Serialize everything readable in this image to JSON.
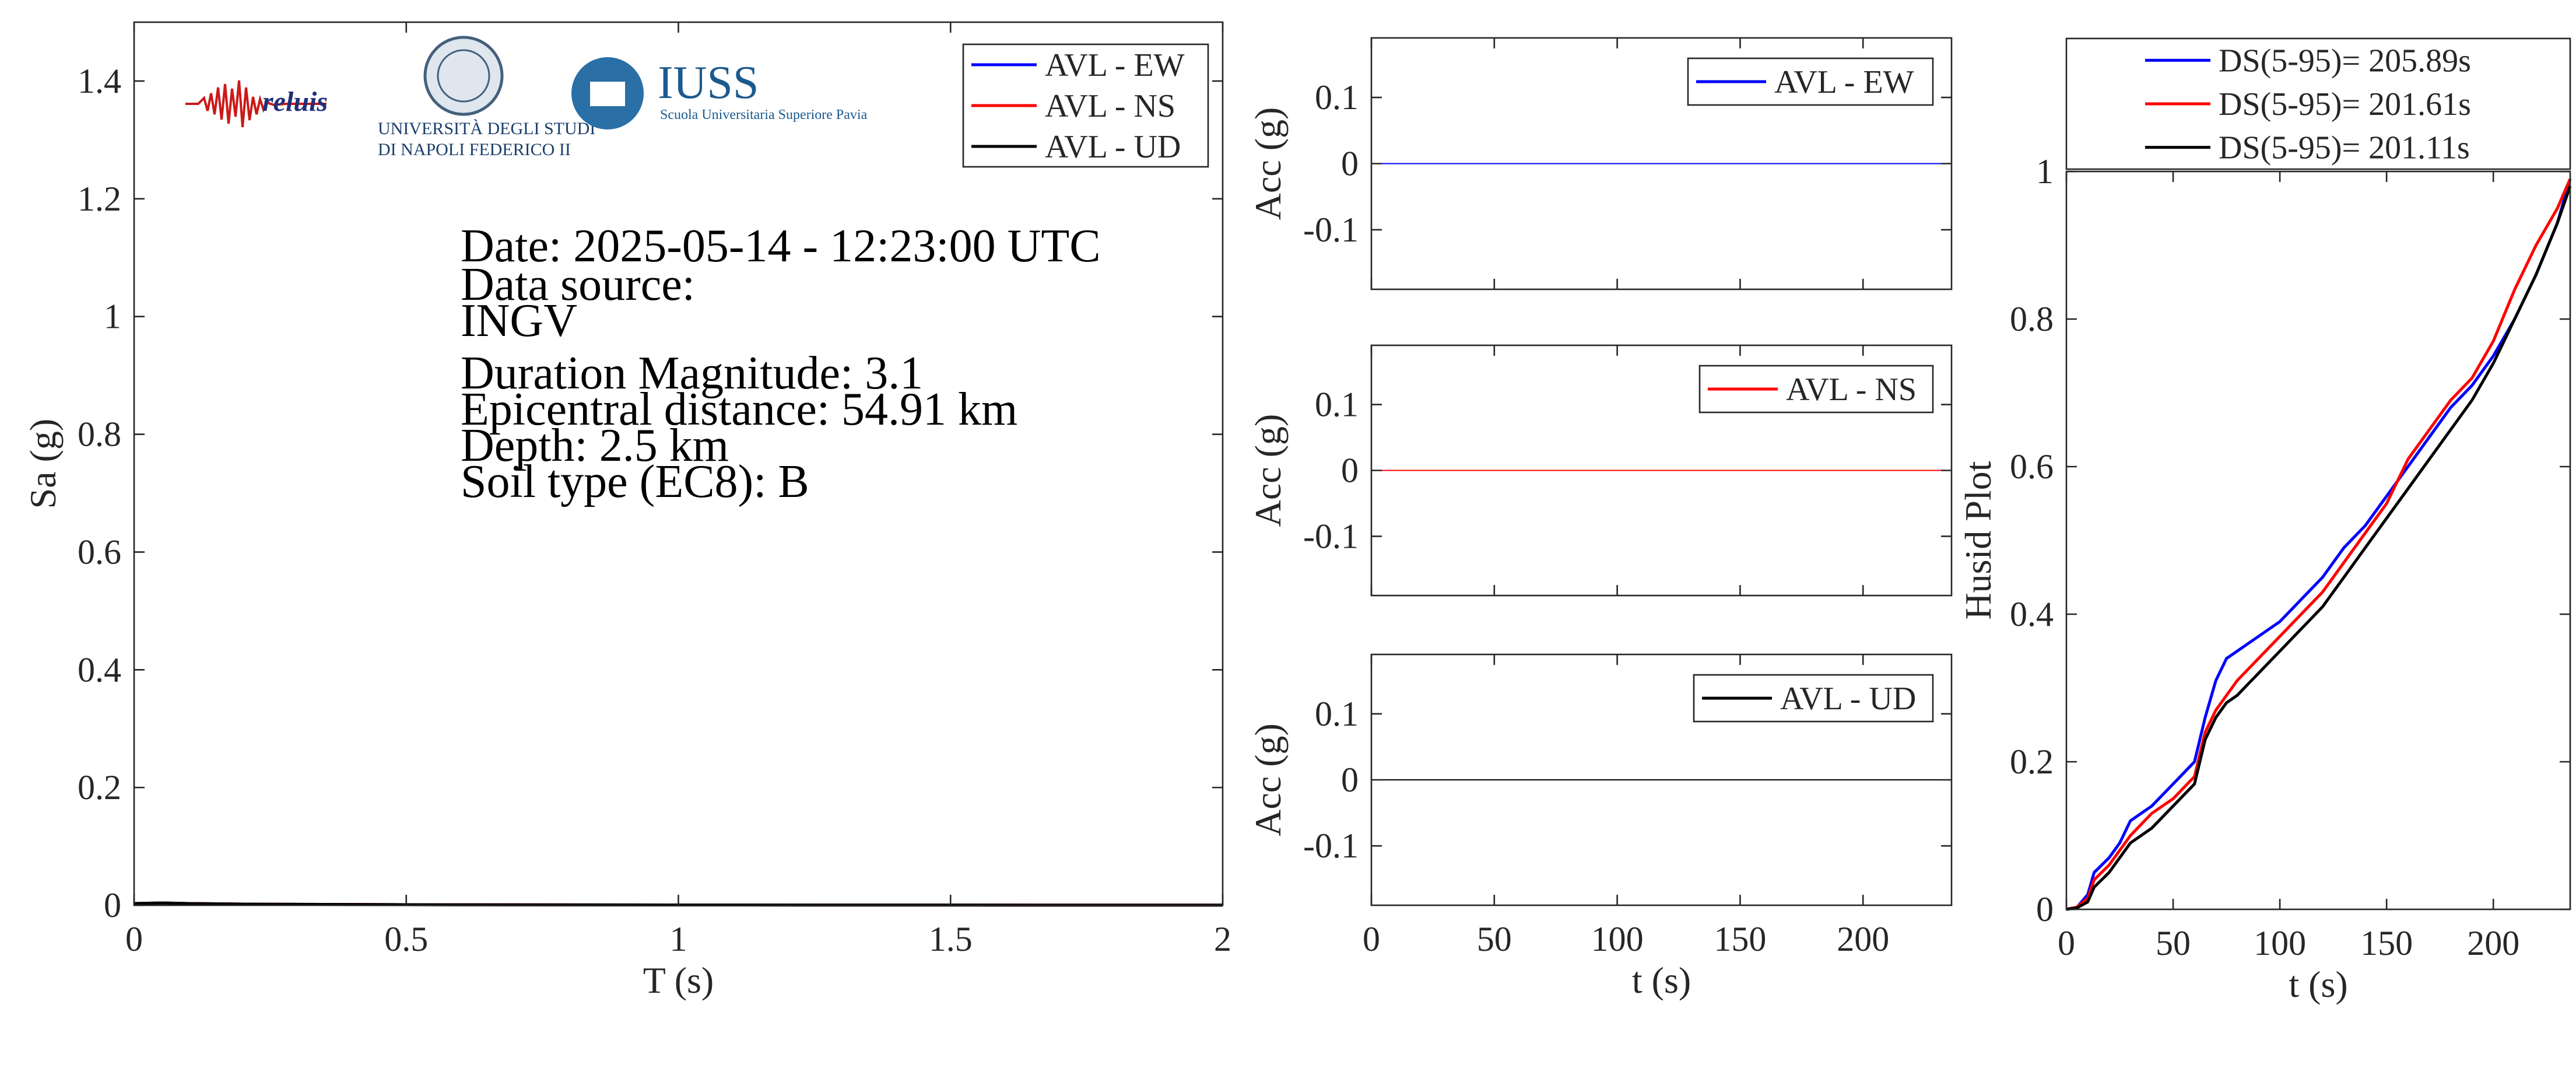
{
  "colors": {
    "ew": "#0000ff",
    "ns": "#ff0000",
    "ud": "#000000",
    "axis": "#262626"
  },
  "info": {
    "date": "Date: 2025-05-14 - 12:23:00 UTC",
    "source_label": "Data source:",
    "source_value": "INGV",
    "magnitude": "Duration Magnitude: 3.1",
    "distance": "Epicentral distance: 54.91 km",
    "depth": "Depth: 2.5 km",
    "soil": "Soil type (EC8): B"
  },
  "logos": {
    "reluis": "reluis",
    "unina_line1": "UNIVERSITÀ DEGLI STUDI",
    "unina_line2": "DI NAPOLI FEDERICO II",
    "iuss_title": "IUSS",
    "iuss_subtitle": "Scuola Universitaria Superiore Pavia"
  },
  "chart_data": [
    {
      "type": "line",
      "id": "spectrum",
      "xlabel": "T (s)",
      "ylabel": "Sa (g)",
      "xlim": [
        0,
        2
      ],
      "ylim": [
        0,
        1.5
      ],
      "xticks": [
        0,
        0.5,
        1,
        1.5,
        2
      ],
      "xtick_labels": [
        "0",
        "0.5",
        "1",
        "1.5",
        "2"
      ],
      "yticks": [
        0,
        0.2,
        0.4,
        0.6,
        0.8,
        1,
        1.2,
        1.4
      ],
      "ytick_labels": [
        "0",
        "0.2",
        "0.4",
        "0.6",
        "0.8",
        "1",
        "1.2",
        "1.4"
      ],
      "grid": false,
      "legend_position": "top-right",
      "series": [
        {
          "name": "AVL - EW",
          "color": "#0000ff",
          "x": [
            0,
            0.05,
            0.1,
            0.2,
            0.5,
            1,
            2
          ],
          "y": [
            0.003,
            0.004,
            0.003,
            0.002,
            0.001,
            0.0005,
            0.0002
          ]
        },
        {
          "name": "AVL - NS",
          "color": "#ff0000",
          "x": [
            0,
            0.05,
            0.1,
            0.2,
            0.5,
            1,
            2
          ],
          "y": [
            0.003,
            0.004,
            0.003,
            0.002,
            0.001,
            0.0005,
            0.0002
          ]
        },
        {
          "name": "AVL - UD",
          "color": "#000000",
          "x": [
            0,
            0.05,
            0.1,
            0.2,
            0.5,
            1,
            2
          ],
          "y": [
            0.003,
            0.004,
            0.003,
            0.002,
            0.001,
            0.0005,
            0.0002
          ]
        }
      ]
    },
    {
      "type": "line",
      "id": "acc-ew",
      "xlabel": "",
      "ylabel": "Acc (g)",
      "xlim": [
        0,
        236
      ],
      "ylim": [
        -0.19,
        0.19
      ],
      "xticks": [
        0,
        50,
        100,
        150,
        200
      ],
      "xtick_labels": [],
      "yticks": [
        -0.1,
        0,
        0.1
      ],
      "ytick_labels": [
        "-0.1",
        "0",
        "0.1"
      ],
      "legend_position": "top-right",
      "series": [
        {
          "name": "AVL - EW",
          "color": "#0000ff",
          "x": [
            0,
            236
          ],
          "y": [
            0,
            0
          ]
        }
      ]
    },
    {
      "type": "line",
      "id": "acc-ns",
      "xlabel": "",
      "ylabel": "Acc (g)",
      "xlim": [
        0,
        236
      ],
      "ylim": [
        -0.19,
        0.19
      ],
      "xticks": [
        0,
        50,
        100,
        150,
        200
      ],
      "xtick_labels": [],
      "yticks": [
        -0.1,
        0,
        0.1
      ],
      "ytick_labels": [
        "-0.1",
        "0",
        "0.1"
      ],
      "legend_position": "top-right",
      "series": [
        {
          "name": "AVL - NS",
          "color": "#ff0000",
          "x": [
            0,
            236
          ],
          "y": [
            0,
            0
          ]
        }
      ]
    },
    {
      "type": "line",
      "id": "acc-ud",
      "xlabel": "t (s)",
      "ylabel": "Acc (g)",
      "xlim": [
        0,
        236
      ],
      "ylim": [
        -0.19,
        0.19
      ],
      "xticks": [
        0,
        50,
        100,
        150,
        200
      ],
      "xtick_labels": [
        "0",
        "50",
        "100",
        "150",
        "200"
      ],
      "yticks": [
        -0.1,
        0,
        0.1
      ],
      "ytick_labels": [
        "-0.1",
        "0",
        "0.1"
      ],
      "legend_position": "top-right",
      "series": [
        {
          "name": "AVL - UD",
          "color": "#000000",
          "x": [
            0,
            236
          ],
          "y": [
            0,
            0
          ]
        }
      ]
    },
    {
      "type": "line",
      "id": "husid",
      "xlabel": "t (s)",
      "ylabel": "Husid Plot",
      "xlim": [
        0,
        236
      ],
      "ylim": [
        0,
        1
      ],
      "xticks": [
        0,
        50,
        100,
        150,
        200
      ],
      "xtick_labels": [
        "0",
        "50",
        "100",
        "150",
        "200"
      ],
      "yticks": [
        0,
        0.2,
        0.4,
        0.6,
        0.8,
        1
      ],
      "ytick_labels": [
        "0",
        "0.2",
        "0.4",
        "0.6",
        "0.8",
        "1"
      ],
      "legend_position": "above",
      "series": [
        {
          "name": "DS(5-95)= 205.89s",
          "color": "#0000ff",
          "x": [
            0,
            5,
            10,
            13,
            20,
            25,
            30,
            40,
            50,
            60,
            65,
            70,
            75,
            80,
            90,
            100,
            110,
            120,
            130,
            140,
            150,
            160,
            170,
            180,
            190,
            200,
            210,
            220,
            230,
            236
          ],
          "y": [
            0,
            0.003,
            0.02,
            0.05,
            0.07,
            0.09,
            0.12,
            0.14,
            0.17,
            0.2,
            0.26,
            0.31,
            0.34,
            0.35,
            0.37,
            0.39,
            0.42,
            0.45,
            0.49,
            0.52,
            0.56,
            0.6,
            0.64,
            0.68,
            0.71,
            0.75,
            0.8,
            0.86,
            0.93,
            0.99
          ]
        },
        {
          "name": "DS(5-95)= 201.61s",
          "color": "#ff0000",
          "x": [
            0,
            5,
            10,
            13,
            20,
            25,
            30,
            40,
            50,
            60,
            65,
            70,
            75,
            80,
            90,
            100,
            110,
            120,
            130,
            140,
            150,
            160,
            170,
            180,
            190,
            200,
            210,
            220,
            230,
            236
          ],
          "y": [
            0,
            0.003,
            0.015,
            0.04,
            0.06,
            0.08,
            0.1,
            0.13,
            0.15,
            0.18,
            0.24,
            0.27,
            0.29,
            0.31,
            0.34,
            0.37,
            0.4,
            0.43,
            0.47,
            0.51,
            0.55,
            0.61,
            0.65,
            0.69,
            0.72,
            0.77,
            0.84,
            0.9,
            0.95,
            0.99
          ]
        },
        {
          "name": "DS(5-95)= 201.11s",
          "color": "#000000",
          "x": [
            0,
            5,
            10,
            13,
            20,
            25,
            30,
            40,
            50,
            60,
            65,
            70,
            75,
            80,
            90,
            100,
            110,
            120,
            130,
            140,
            150,
            160,
            170,
            180,
            190,
            200,
            210,
            220,
            230,
            236
          ],
          "y": [
            0,
            0.002,
            0.01,
            0.03,
            0.05,
            0.07,
            0.09,
            0.11,
            0.14,
            0.17,
            0.23,
            0.26,
            0.28,
            0.29,
            0.32,
            0.35,
            0.38,
            0.41,
            0.45,
            0.49,
            0.53,
            0.57,
            0.61,
            0.65,
            0.69,
            0.74,
            0.8,
            0.86,
            0.93,
            0.98
          ]
        }
      ]
    }
  ]
}
